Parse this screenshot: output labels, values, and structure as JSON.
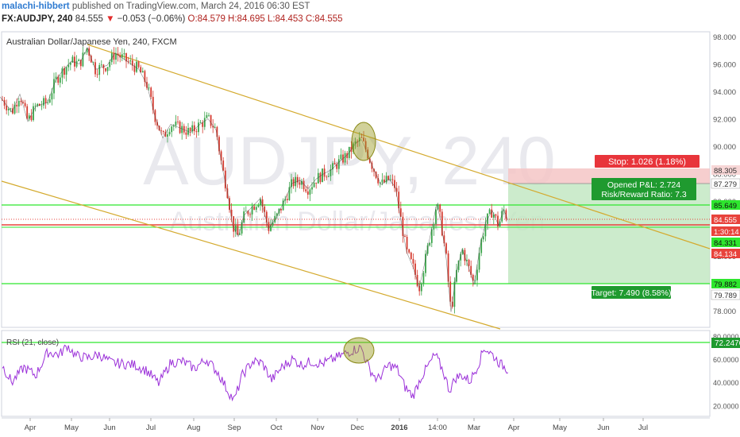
{
  "header": {
    "author": "malachi-hibbert",
    "published_text": "published on TradingView.com, March 24, 2016 06:30 EST",
    "symbol": "FX:AUDJPY, 240",
    "last": "84.555",
    "change_arrow": "▼",
    "change": "−0.053 (−0.06%)",
    "ohlc": "O:84.579 H:84.695 L:84.453 C:84.555"
  },
  "chart_data": {
    "type": "line",
    "title": "Australian Dollar/Japanese Yen, 240, FXCM",
    "watermark_symbol": "AUDJPY, 240",
    "watermark_name": "Australian Dollar/Japanese Yen",
    "colors": {
      "candle_up": "#39a349",
      "candle_down": "#d43a2f",
      "channel": "#d4aa2e",
      "green_line": "#2ee62e",
      "red_line": "#e8433c",
      "rsi": "#9b30d9",
      "ellipse": "#9a9a1e"
    },
    "price_axis": {
      "ylim": [
        76.5,
        98.2
      ],
      "ticks": [
        "98.000",
        "96.000",
        "94.000",
        "92.000",
        "90.000",
        "88.000",
        "86.000",
        "84.000",
        "82.000",
        "80.000",
        "78.000"
      ]
    },
    "time_axis": {
      "labels": [
        "Apr",
        "May",
        "Jun",
        "Jul",
        "Aug",
        "Sep",
        "Oct",
        "Nov",
        "Dec",
        "2016",
        "14:00",
        "Mar",
        "Apr",
        "May",
        "Jun",
        "Jul"
      ]
    },
    "price_path": [
      [
        0,
        93.6
      ],
      [
        15,
        92.5
      ],
      [
        25,
        93.8
      ],
      [
        35,
        91.8
      ],
      [
        45,
        92.9
      ],
      [
        60,
        93.2
      ],
      [
        70,
        94.8
      ],
      [
        80,
        95.6
      ],
      [
        90,
        96.2
      ],
      [
        100,
        96.0
      ],
      [
        110,
        97.2
      ],
      [
        120,
        95.6
      ],
      [
        135,
        95.9
      ],
      [
        145,
        96.8
      ],
      [
        160,
        96.2
      ],
      [
        175,
        95.6
      ],
      [
        185,
        94.5
      ],
      [
        195,
        92.2
      ],
      [
        205,
        90.6
      ],
      [
        215,
        91.6
      ],
      [
        228,
        91.3
      ],
      [
        240,
        91.0
      ],
      [
        252,
        91.6
      ],
      [
        262,
        92.0
      ],
      [
        272,
        91.2
      ],
      [
        280,
        88.4
      ],
      [
        287,
        86.5
      ],
      [
        293,
        84.2
      ],
      [
        300,
        83.4
      ],
      [
        308,
        85.0
      ],
      [
        318,
        85.6
      ],
      [
        328,
        86.2
      ],
      [
        338,
        84.0
      ],
      [
        348,
        84.8
      ],
      [
        358,
        86.0
      ],
      [
        368,
        87.3
      ],
      [
        378,
        87.5
      ],
      [
        388,
        86.9
      ],
      [
        398,
        87.6
      ],
      [
        408,
        88.0
      ],
      [
        418,
        88.3
      ],
      [
        428,
        88.9
      ],
      [
        438,
        89.4
      ],
      [
        448,
        90.2
      ],
      [
        455,
        90.5
      ],
      [
        462,
        89.6
      ],
      [
        470,
        88.4
      ],
      [
        480,
        87.2
      ],
      [
        490,
        87.6
      ],
      [
        498,
        87.0
      ],
      [
        505,
        84.6
      ],
      [
        512,
        82.3
      ],
      [
        520,
        81.2
      ],
      [
        528,
        79.7
      ],
      [
        535,
        81.5
      ],
      [
        542,
        83.5
      ],
      [
        550,
        85.8
      ],
      [
        555,
        84.6
      ],
      [
        562,
        81.8
      ],
      [
        568,
        77.9
      ],
      [
        575,
        80.8
      ],
      [
        582,
        82.5
      ],
      [
        590,
        81.2
      ],
      [
        597,
        79.9
      ],
      [
        605,
        82.8
      ],
      [
        612,
        84.5
      ],
      [
        620,
        85.3
      ],
      [
        628,
        84.2
      ],
      [
        634,
        85.4
      ],
      [
        640,
        84.6
      ]
    ],
    "rsi_path": [
      [
        0,
        58
      ],
      [
        15,
        40
      ],
      [
        30,
        53
      ],
      [
        45,
        46
      ],
      [
        60,
        66
      ],
      [
        75,
        64
      ],
      [
        85,
        72
      ],
      [
        95,
        63
      ],
      [
        110,
        61
      ],
      [
        125,
        64
      ],
      [
        140,
        57
      ],
      [
        155,
        56
      ],
      [
        170,
        55
      ],
      [
        185,
        50
      ],
      [
        200,
        39
      ],
      [
        215,
        57
      ],
      [
        230,
        58
      ],
      [
        245,
        52
      ],
      [
        260,
        60
      ],
      [
        275,
        48
      ],
      [
        285,
        35
      ],
      [
        295,
        24
      ],
      [
        305,
        46
      ],
      [
        318,
        58
      ],
      [
        330,
        57
      ],
      [
        342,
        42
      ],
      [
        355,
        53
      ],
      [
        368,
        60
      ],
      [
        380,
        55
      ],
      [
        392,
        58
      ],
      [
        405,
        56
      ],
      [
        420,
        60
      ],
      [
        432,
        64
      ],
      [
        445,
        68
      ],
      [
        455,
        70
      ],
      [
        465,
        52
      ],
      [
        475,
        42
      ],
      [
        490,
        55
      ],
      [
        500,
        52
      ],
      [
        510,
        36
      ],
      [
        520,
        28
      ],
      [
        530,
        44
      ],
      [
        540,
        55
      ],
      [
        548,
        64
      ],
      [
        558,
        50
      ],
      [
        566,
        33
      ],
      [
        574,
        44
      ],
      [
        582,
        46
      ],
      [
        592,
        41
      ],
      [
        602,
        55
      ],
      [
        610,
        70
      ],
      [
        620,
        64
      ],
      [
        630,
        56
      ],
      [
        640,
        51
      ]
    ],
    "levels": [
      {
        "name": "stop",
        "value": 88.305
      },
      {
        "name": "entry",
        "value": 87.279
      },
      {
        "name": "green_upper",
        "value": 85.649
      },
      {
        "name": "last",
        "value": 84.555
      },
      {
        "name": "red_lower",
        "value": 84.134
      },
      {
        "name": "green_lower",
        "value": 79.882
      },
      {
        "name": "target",
        "value": 79.789
      }
    ],
    "price_labels": [
      {
        "text": "88.305",
        "style": "red"
      },
      {
        "text": "87.279",
        "style": "plain"
      },
      {
        "text": "85.649",
        "style": "green"
      },
      {
        "text": "84.555",
        "style": "redbox"
      },
      {
        "text": "1:30:14",
        "style": "redbox"
      },
      {
        "text": "84.331",
        "style": "green"
      },
      {
        "text": "84.134",
        "style": "redbox"
      },
      {
        "text": "79.882",
        "style": "green"
      },
      {
        "text": "79.789",
        "style": "plain"
      }
    ],
    "annotations": {
      "stop": "Stop: 1.026 (1.18%)",
      "pnl": "Opened P&L: 2.724",
      "rr": "Risk/Reward Ratio: 7.3",
      "target": "Target: 7.490 (8.58%)"
    },
    "rsi": {
      "label": "RSI (21, close)",
      "ylim": [
        12,
        82
      ],
      "ticks": [
        "80.0000",
        "60.0000",
        "40.0000",
        "20.0000"
      ],
      "level_label": "72.2476",
      "level": 72.2476
    }
  }
}
